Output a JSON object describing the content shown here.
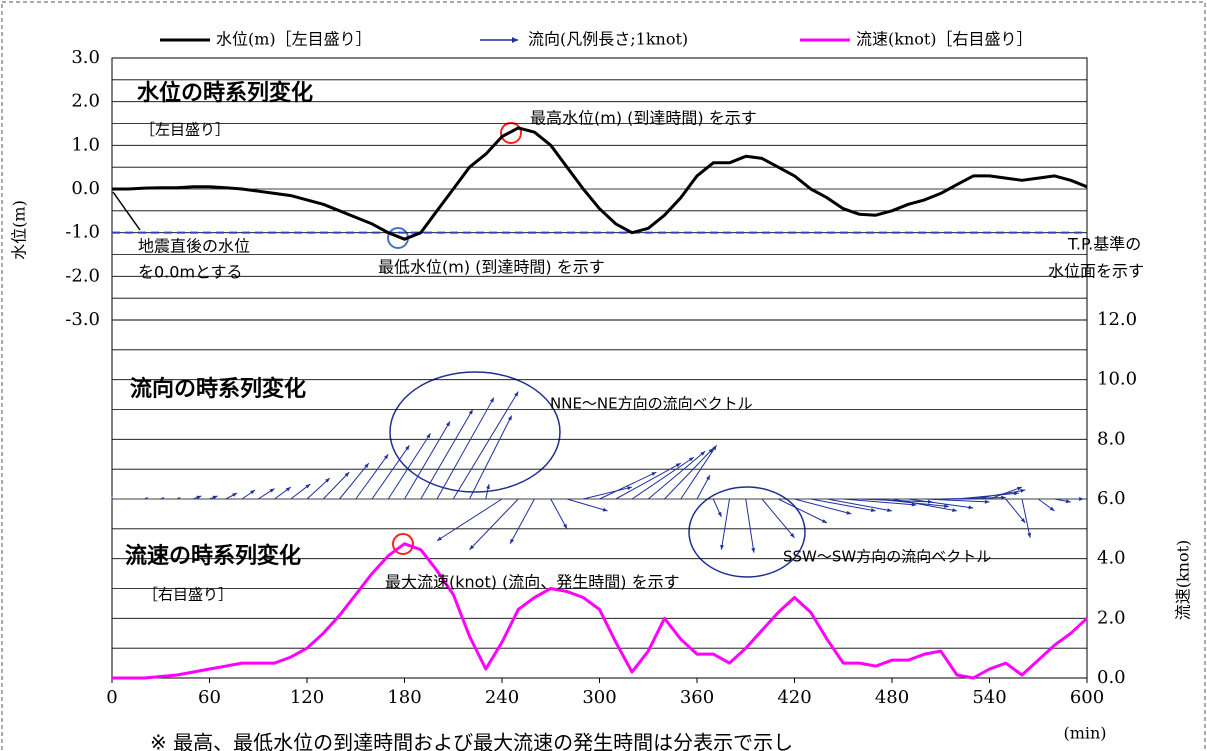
{
  "chart_data": [
    {
      "type": "line",
      "ylabel": "水位(m)",
      "xlim": [
        0,
        600
      ],
      "ylim": [
        -3,
        3
      ],
      "yticks": [
        {
          "value": -3,
          "label": "-3.0"
        },
        {
          "value": -2,
          "label": "-2.0"
        },
        {
          "value": -1,
          "label": "-1.0"
        },
        {
          "value": 0,
          "label": "0.0"
        },
        {
          "value": 1,
          "label": "1.0"
        },
        {
          "value": 2,
          "label": "2.0"
        },
        {
          "value": 3,
          "label": "3.0"
        }
      ],
      "yminorticks": [
        -2.5,
        -1.5,
        -0.5,
        0.5,
        1.5,
        2.5
      ],
      "grid": true,
      "reference_line": -1,
      "x": [
        0,
        10,
        20,
        30,
        40,
        50,
        60,
        70,
        80,
        90,
        100,
        110,
        120,
        130,
        140,
        150,
        160,
        170,
        180,
        190,
        200,
        210,
        220,
        230,
        240,
        250,
        260,
        270,
        280,
        290,
        300,
        310,
        320,
        330,
        340,
        350,
        360,
        370,
        380,
        390,
        400,
        410,
        420,
        430,
        440,
        450,
        460,
        470,
        480,
        490,
        500,
        510,
        520,
        530,
        540,
        550,
        560,
        570,
        580,
        590,
        600
      ],
      "series": [
        {
          "name": "水位(m)［左目盛り］",
          "color": "#000000",
          "values": [
            0,
            0,
            0.02,
            0.03,
            0.03,
            0.05,
            0.05,
            0.03,
            0,
            -0.05,
            -0.1,
            -0.15,
            -0.25,
            -0.35,
            -0.5,
            -0.65,
            -0.8,
            -1.0,
            -1.15,
            -1.0,
            -0.5,
            0,
            0.5,
            0.8,
            1.2,
            1.4,
            1.3,
            1.0,
            0.5,
            0,
            -0.45,
            -0.8,
            -1.0,
            -0.9,
            -0.6,
            -0.2,
            0.3,
            0.6,
            0.6,
            0.75,
            0.7,
            0.5,
            0.3,
            0,
            -0.2,
            -0.45,
            -0.58,
            -0.6,
            -0.5,
            -0.35,
            -0.25,
            -0.1,
            0.1,
            0.3,
            0.3,
            0.25,
            0.2,
            0.25,
            0.3,
            0.2,
            0.05
          ]
        }
      ],
      "annotations": [
        {
          "text": "水位の時系列変化",
          "color": "#000000"
        },
        {
          "text": "［左目盛り］",
          "color": "#000000"
        },
        {
          "text": "最高水位(m) (到達時間) を示す",
          "color": "#ff2020"
        },
        {
          "text": "最低水位(m) (到達時間) を示す",
          "color": "#4472c4"
        },
        {
          "text": "地震直後の水位",
          "color": "#000000"
        },
        {
          "text": "を0.0mとする",
          "color": "#000000"
        },
        {
          "text": "T.P.基準の",
          "color": "#4472c4"
        },
        {
          "text": "水位面を示す",
          "color": "#4472c4"
        }
      ]
    },
    {
      "type": "line",
      "y2label": "流速(knot)",
      "xlabel": "(min)",
      "xlim": [
        0,
        600
      ],
      "xticks": [
        0,
        60,
        120,
        180,
        240,
        300,
        360,
        420,
        480,
        540,
        600
      ],
      "y2lim": [
        0,
        12
      ],
      "y2ticks": [
        {
          "value": 0,
          "label": "0.0"
        },
        {
          "value": 2,
          "label": "2.0"
        },
        {
          "value": 4,
          "label": "4.0"
        },
        {
          "value": 6,
          "label": "6.0"
        },
        {
          "value": 8,
          "label": "8.0"
        },
        {
          "value": 10,
          "label": "10.0"
        },
        {
          "value": 12,
          "label": "12.0"
        }
      ],
      "y2minorticks": [
        1,
        3,
        5,
        7,
        9,
        11
      ],
      "grid": true,
      "vector_base": 6,
      "x": [
        0,
        10,
        20,
        30,
        40,
        50,
        60,
        70,
        80,
        90,
        100,
        110,
        120,
        130,
        140,
        150,
        160,
        170,
        180,
        190,
        200,
        210,
        220,
        230,
        240,
        250,
        260,
        270,
        280,
        290,
        300,
        310,
        320,
        330,
        340,
        350,
        360,
        370,
        380,
        390,
        400,
        410,
        420,
        430,
        440,
        450,
        460,
        470,
        480,
        490,
        500,
        510,
        520,
        530,
        540,
        550,
        560,
        570,
        580,
        590,
        600
      ],
      "series": [
        {
          "name": "流向(凡例長さ;1knot)",
          "type": "vector",
          "color": "#1f2f9f",
          "axis": "y2",
          "values": [
            6.1,
            6.0,
            6.05,
            6.05,
            6.05,
            6.1,
            6.1,
            6.2,
            6.3,
            6.35,
            6.4,
            6.5,
            6.7,
            6.9,
            7.2,
            7.5,
            7.8,
            8.2,
            8.6,
            9.0,
            9.4,
            9.6,
            8.8,
            6.5,
            4.6,
            4.3,
            4.5,
            5.0,
            5.6,
            6.4,
            6.9,
            7.2,
            7.4,
            7.6,
            7.7,
            7.8,
            6.8,
            5.4,
            4.3,
            4.2,
            4.7,
            5.2,
            5.5,
            5.6,
            5.6,
            5.8,
            5.9,
            5.75,
            5.6,
            5.7,
            5.9,
            6.05,
            6.2,
            6.3,
            6.4,
            5.2,
            4.7,
            5.6,
            5.9,
            6.0,
            6.0
          ],
          "x_tips": [
            0,
            10,
            22,
            32,
            42,
            55,
            65,
            77,
            88,
            100,
            110,
            122,
            134,
            146,
            158,
            170,
            183,
            196,
            208,
            222,
            235,
            250,
            246,
            232,
            200,
            220,
            245,
            280,
            305,
            320,
            335,
            350,
            358,
            365,
            370,
            372,
            368,
            375,
            375,
            395,
            420,
            440,
            455,
            470,
            480,
            495,
            505,
            515,
            520,
            530,
            540,
            550,
            558,
            562,
            560,
            562,
            565,
            580,
            590,
            598,
            600
          ]
        },
        {
          "name": "流速(knot)［右目盛り］",
          "color": "#ff00ff",
          "axis": "y2",
          "values": [
            0,
            0,
            0,
            0.05,
            0.1,
            0.2,
            0.3,
            0.4,
            0.5,
            0.5,
            0.5,
            0.7,
            1.0,
            1.5,
            2.1,
            2.8,
            3.5,
            4.1,
            4.5,
            4.3,
            3.6,
            2.8,
            1.4,
            0.3,
            1.2,
            2.3,
            2.7,
            3.0,
            2.9,
            2.7,
            2.3,
            1.2,
            0.2,
            0.9,
            2.0,
            1.3,
            0.8,
            0.8,
            0.5,
            1.0,
            1.6,
            2.2,
            2.7,
            2.2,
            1.3,
            0.5,
            0.5,
            0.4,
            0.6,
            0.6,
            0.8,
            0.9,
            0.1,
            0,
            0.3,
            0.5,
            0.1,
            0.6,
            1.1,
            1.5,
            2.0
          ]
        }
      ],
      "annotations": [
        {
          "text": "流向の時系列変化",
          "color": "#1f2f8f"
        },
        {
          "text": "NNE～NE方向の流向ベクトル",
          "color": "#1f2f8f"
        },
        {
          "text": "流速の時系列変化",
          "color": "#ff00ff"
        },
        {
          "text": "［右目盛り］",
          "color": "#ff00ff"
        },
        {
          "text": "最大流速(knot) (流向、発生時間) を示す",
          "color": "#ff2020"
        },
        {
          "text": "SSW～SW方向の流向ベクトル",
          "color": "#1f2f8f"
        }
      ]
    }
  ],
  "footnote": "※ 最高、最低水位の到達時間および最大流速の発生時間は分表示で示し"
}
